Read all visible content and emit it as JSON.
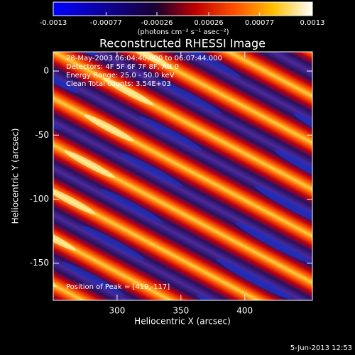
{
  "chart_data": {
    "type": "image",
    "title": "Reconstructed RHESSI Image",
    "x_label": "Heliocentric X (arcsec)",
    "y_label": "Heliocentric Y (arcsec)",
    "xlim": [
      250,
      453
    ],
    "ylim": [
      -179,
      15
    ],
    "xticks": [
      300,
      350,
      400
    ],
    "yticks": [
      -150,
      -100,
      -50,
      0
    ],
    "colorbar": {
      "clim": [
        -0.0013,
        0.0013
      ],
      "ticks": [
        -0.0013,
        -0.00077,
        -0.00026,
        0.00026,
        0.00077,
        0.0013
      ],
      "unit": "(photons cm⁻² s⁻¹ asec⁻²)"
    },
    "annotations": [
      "28-May-2003 06:04:40.000 to 06:07:44.000",
      "Detectors: 4F 5F 6F 7F 8F, Att 0",
      "Energy Range: 25.0 - 50.0 keV",
      "Clean     Total counts: 3.54E+03"
    ],
    "peak_label": "Position of Peak = [419,-117]",
    "timestamp": "5-Jun-2013 12:53"
  }
}
